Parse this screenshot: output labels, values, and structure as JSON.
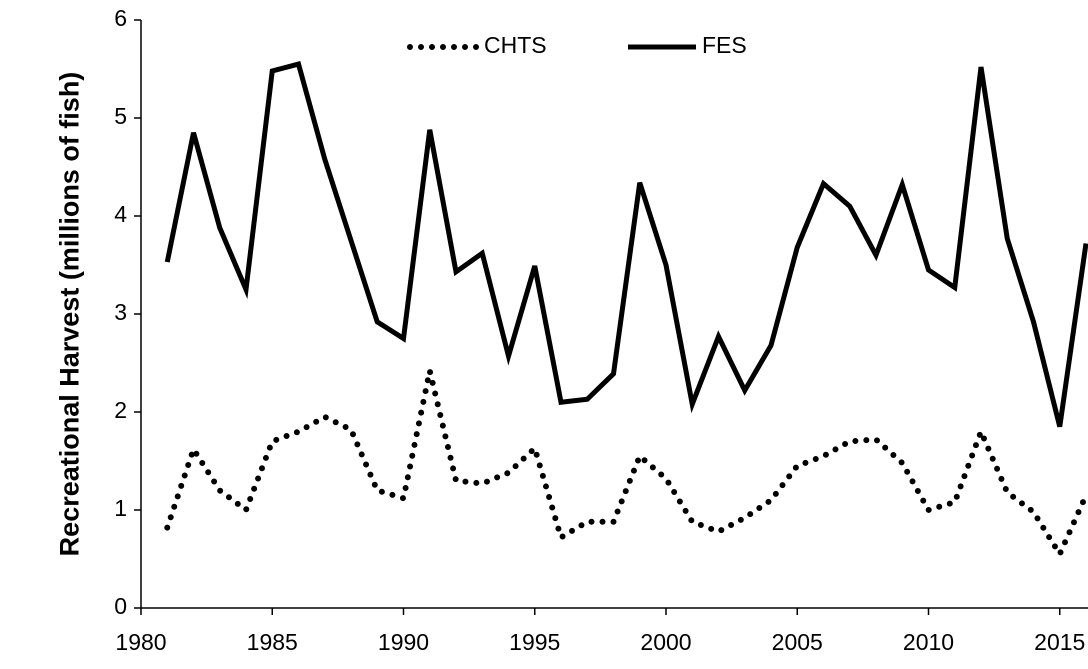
{
  "chart_data": {
    "type": "line",
    "y_label": "Recreational Harvest (millions of fish)",
    "x": [
      1981,
      1982,
      1983,
      1984,
      1985,
      1986,
      1987,
      1988,
      1989,
      1990,
      1991,
      1992,
      1993,
      1994,
      1995,
      1996,
      1997,
      1998,
      1999,
      2000,
      2001,
      2002,
      2003,
      2004,
      2005,
      2006,
      2007,
      2008,
      2009,
      2010,
      2011,
      2012,
      2013,
      2014,
      2015,
      2016
    ],
    "series": [
      {
        "name": "CHTS",
        "color": "#000000",
        "style": "dotted",
        "values": [
          0.82,
          1.62,
          1.2,
          1.0,
          1.7,
          1.8,
          1.95,
          1.82,
          1.2,
          1.12,
          2.42,
          1.3,
          1.27,
          1.38,
          1.63,
          0.72,
          0.88,
          0.88,
          1.55,
          1.32,
          0.88,
          0.78,
          0.92,
          1.1,
          1.45,
          1.55,
          1.7,
          1.72,
          1.48,
          1.0,
          1.08,
          1.8,
          1.18,
          0.98,
          0.55,
          1.15
        ]
      },
      {
        "name": "FES",
        "color": "#000000",
        "style": "solid",
        "values": [
          3.53,
          4.85,
          3.88,
          3.25,
          5.48,
          5.55,
          4.58,
          3.75,
          2.92,
          2.75,
          4.88,
          3.43,
          3.62,
          2.57,
          3.49,
          2.1,
          2.13,
          2.39,
          4.34,
          3.5,
          2.08,
          2.77,
          2.22,
          2.68,
          3.68,
          4.33,
          4.1,
          3.6,
          4.32,
          3.45,
          3.27,
          5.52,
          3.77,
          2.92,
          1.85,
          3.72
        ]
      }
    ],
    "xlim": [
      1980,
      2016
    ],
    "xticks": [
      1980,
      1985,
      1990,
      1995,
      2000,
      2005,
      2010,
      2015
    ],
    "ylim": [
      0,
      6
    ],
    "yticks": [
      0,
      1,
      2,
      3,
      4,
      5,
      6
    ],
    "grid": false,
    "legend": "top"
  }
}
